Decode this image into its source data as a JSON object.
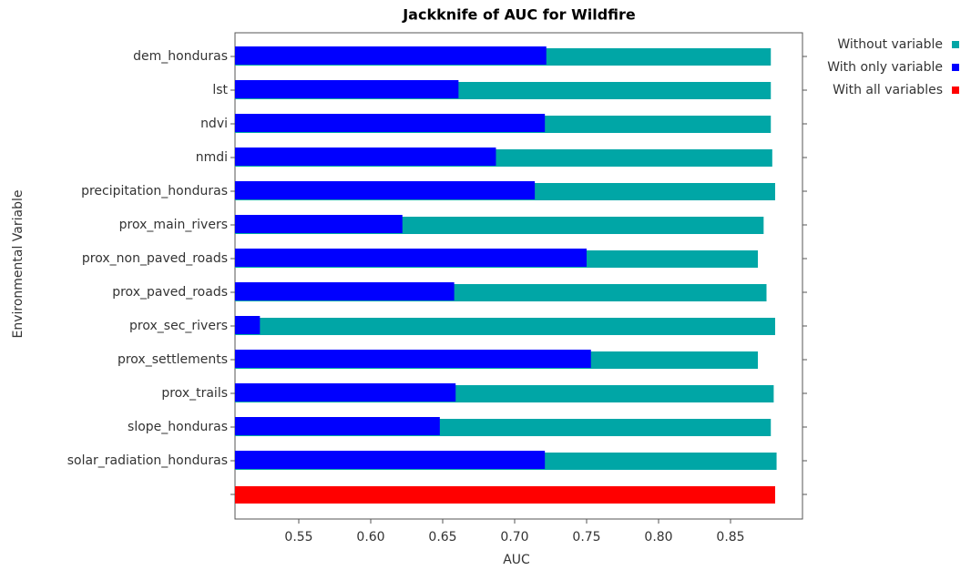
{
  "chart_data": {
    "type": "bar",
    "orientation": "horizontal",
    "title": "Jackknife of AUC for Wildfire",
    "x_label": "AUC",
    "y_label": "Environmental Variable",
    "categories": [
      "dem_honduras",
      "lst",
      "ndvi",
      "nmdi",
      "precipitation_honduras",
      "prox_main_rivers",
      "prox_non_paved_roads",
      "prox_paved_roads",
      "prox_sec_rivers",
      "prox_settlements",
      "prox_trails",
      "slope_honduras",
      "solar_radiation_honduras",
      null
    ],
    "series": [
      {
        "name": "Without variable",
        "color": "#00a6a6",
        "values": [
          0.878,
          0.878,
          0.878,
          0.879,
          0.881,
          0.873,
          0.869,
          0.875,
          0.881,
          0.869,
          0.88,
          0.878,
          0.882,
          null
        ]
      },
      {
        "name": "With only variable",
        "color": "#0000ff",
        "values": [
          0.722,
          0.661,
          0.721,
          0.687,
          0.714,
          0.622,
          0.75,
          0.658,
          0.523,
          0.753,
          0.659,
          0.648,
          0.721,
          null
        ]
      },
      {
        "name": "With all variables",
        "color": "#ff0000",
        "values": [
          null,
          null,
          null,
          null,
          null,
          null,
          null,
          null,
          null,
          null,
          null,
          null,
          null,
          0.881
        ]
      }
    ],
    "xlim": [
      0.5057,
      0.9
    ],
    "xticks": [
      0.55,
      {
        "value": 0.6,
        "label": "0.60"
      },
      0.65,
      {
        "value": 0.7,
        "label": "0.70"
      },
      0.75,
      {
        "value": 0.8,
        "label": "0.80"
      },
      0.85
    ],
    "legend": "top-right"
  }
}
